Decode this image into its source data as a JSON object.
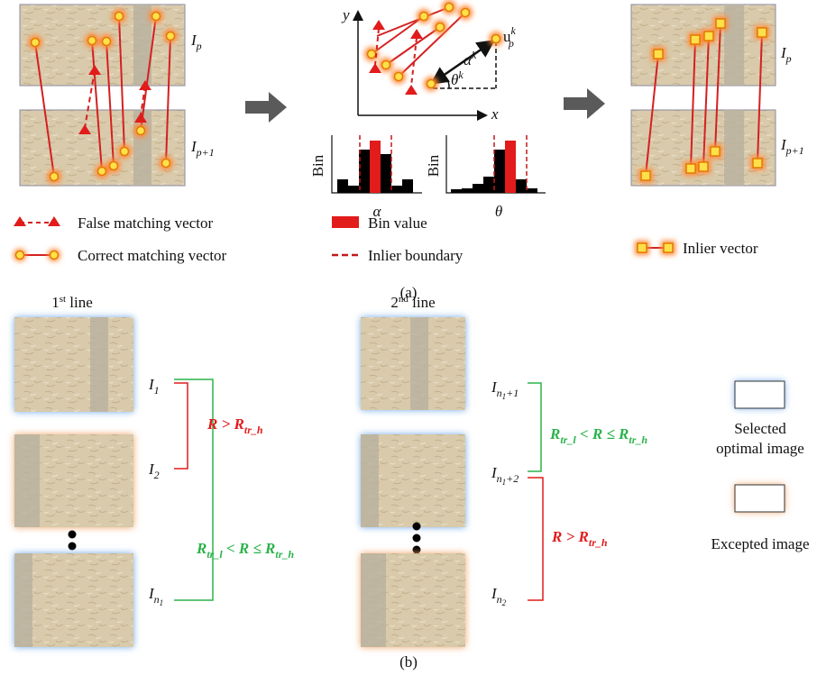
{
  "panel_a": {
    "image_labels": [
      [
        "I",
        "p"
      ],
      [
        "I",
        "p+1"
      ],
      [
        "I",
        "p"
      ],
      [
        "I",
        "p+1"
      ]
    ],
    "plot": {
      "y_axis": "y",
      "x_axis": "x",
      "alpha": [
        "α",
        "k"
      ],
      "theta": [
        "θ",
        "k"
      ],
      "u": [
        "u",
        "k",
        "p"
      ]
    },
    "histograms": [
      {
        "y_label": "Bin",
        "x_label": "α"
      },
      {
        "y_label": "Bin",
        "x_label": "θ"
      }
    ],
    "legend": [
      "False matching vector",
      "Correct matching vector",
      "Bin value",
      "Inlier boundary",
      "Inlier vector"
    ],
    "caption": "(a)"
  },
  "panel_b": {
    "columns": [
      {
        "title": [
          "1",
          "st",
          " line"
        ],
        "labels": [
          [
            "I",
            "1"
          ],
          [
            "I",
            "2"
          ],
          [
            "I",
            "n",
            "1"
          ]
        ]
      },
      {
        "title": [
          "2",
          "nd",
          " line"
        ],
        "labels": [
          [
            "I",
            "n",
            "1",
            "+1"
          ],
          [
            "I",
            "n",
            "1",
            "+2"
          ],
          [
            "I",
            "n",
            "2"
          ]
        ]
      }
    ],
    "conditions": [
      [
        "R > R",
        "tr_h"
      ],
      [
        "R",
        "tr_l",
        " < R ≤ R",
        "tr_h"
      ],
      [
        "R",
        "tr_l",
        " < R ≤ R",
        "tr_h"
      ],
      [
        "R > R",
        "tr_h"
      ]
    ],
    "legend": [
      "Selected",
      "optimal image",
      "Excepted image"
    ],
    "caption": "(b)"
  }
}
